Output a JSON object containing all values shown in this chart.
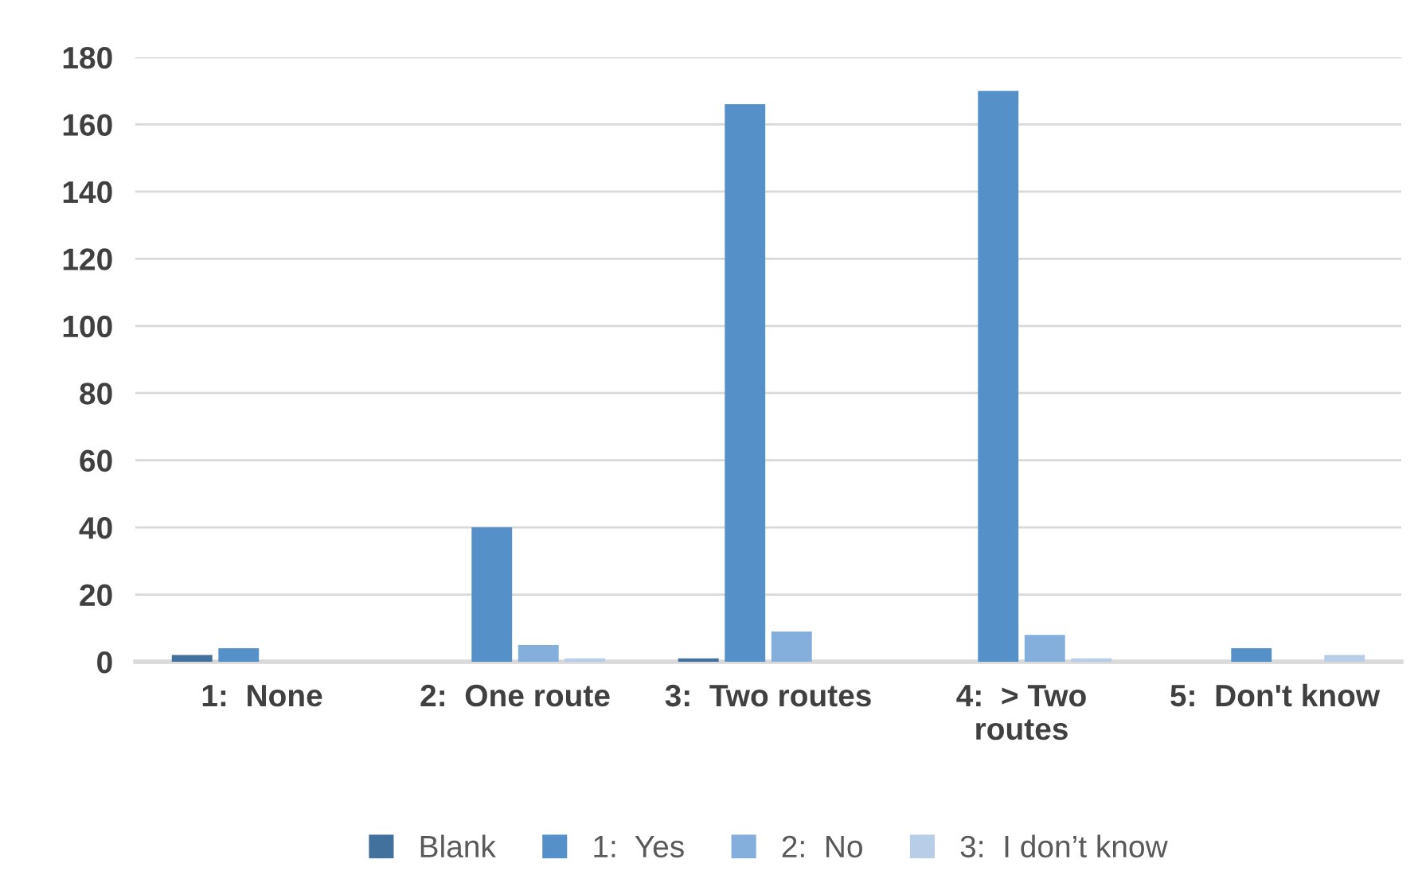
{
  "chart_data": {
    "type": "bar",
    "categories": [
      "1:  None",
      "2:  One route",
      "3:  Two routes",
      "4:  > Two\nroutes",
      "5:  Don't know"
    ],
    "series": [
      {
        "name": "Blank",
        "color": "#41719c",
        "values": [
          2,
          0,
          1,
          0,
          0
        ]
      },
      {
        "name": "1:  Yes",
        "color": "#5591c8",
        "values": [
          4,
          40,
          166,
          170,
          4
        ]
      },
      {
        "name": "2:  No",
        "color": "#84afdd",
        "values": [
          0,
          5,
          9,
          8,
          0
        ]
      },
      {
        "name": "3:  I don’t know",
        "color": "#b7cde8",
        "values": [
          0,
          1,
          0,
          1,
          2
        ]
      }
    ],
    "ylim": [
      0,
      180
    ],
    "yticks": [
      0,
      20,
      40,
      60,
      80,
      100,
      120,
      140,
      160,
      180
    ],
    "grid": "y",
    "legend": "bottom"
  }
}
